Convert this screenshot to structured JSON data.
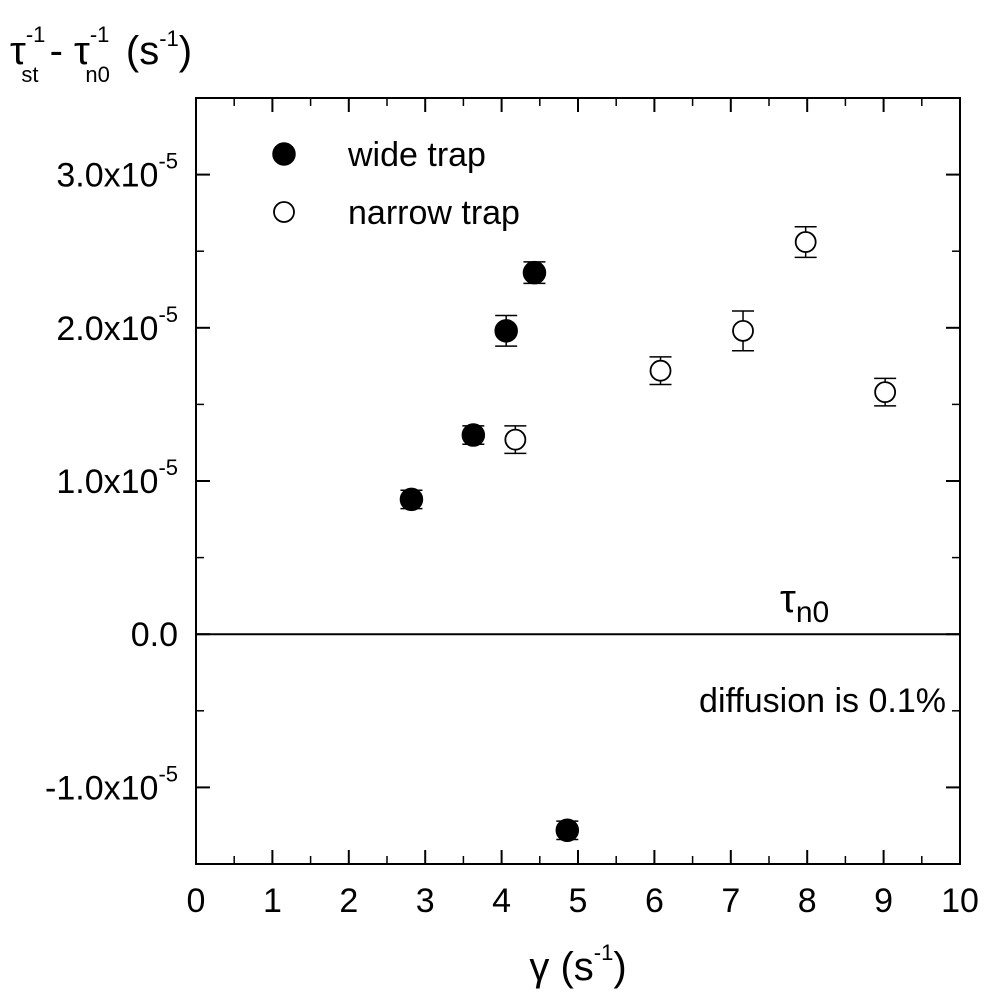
{
  "chart_data": {
    "type": "scatter",
    "ylabel": {
      "t1": "τ",
      "s1": "-1",
      "b1": "st",
      "mid": " - ",
      "t2": "τ",
      "s2": "-1",
      "b2": "n0",
      "unit_pre": "(s",
      "unit_sup": "-1",
      "unit_post": ")"
    },
    "xlabel": {
      "sym": "γ",
      "unit_pre": " (s",
      "unit_sup": "-1",
      "unit_post": ")"
    },
    "xlim": [
      0,
      10
    ],
    "ylim": [
      -1.5e-05,
      3.5e-05
    ],
    "x_ticks": [
      {
        "value": 0,
        "label": "0"
      },
      {
        "value": 1,
        "label": "1"
      },
      {
        "value": 2,
        "label": "2"
      },
      {
        "value": 3,
        "label": "3"
      },
      {
        "value": 4,
        "label": "4"
      },
      {
        "value": 5,
        "label": "5"
      },
      {
        "value": 6,
        "label": "6"
      },
      {
        "value": 7,
        "label": "7"
      },
      {
        "value": 8,
        "label": "8"
      },
      {
        "value": 9,
        "label": "9"
      },
      {
        "value": 10,
        "label": "10"
      }
    ],
    "y_ticks": [
      {
        "value": -1e-05,
        "mant": "-1.0x10",
        "exp": "-5"
      },
      {
        "value": 0,
        "mant": "0.0",
        "exp": ""
      },
      {
        "value": 1e-05,
        "mant": "1.0x10",
        "exp": "-5"
      },
      {
        "value": 2e-05,
        "mant": "2.0x10",
        "exp": "-5"
      },
      {
        "value": 3e-05,
        "mant": "3.0x10",
        "exp": "-5"
      }
    ],
    "zero_line": 0,
    "grid": false,
    "legend_position": "top-left",
    "series": [
      {
        "name": "wide trap",
        "marker": "filled-circle",
        "points": [
          {
            "x": 2.82,
            "y": 8.8e-06,
            "err": 6e-07
          },
          {
            "x": 3.63,
            "y": 1.3e-05,
            "err": 6e-07
          },
          {
            "x": 4.06,
            "y": 1.98e-05,
            "err": 1e-06
          },
          {
            "x": 4.43,
            "y": 2.36e-05,
            "err": 7e-07
          },
          {
            "x": 4.86,
            "y": -1.28e-05,
            "err": 6e-07
          }
        ]
      },
      {
        "name": "narrow trap",
        "marker": "open-circle",
        "points": [
          {
            "x": 4.18,
            "y": 1.27e-05,
            "err": 9e-07
          },
          {
            "x": 6.08,
            "y": 1.72e-05,
            "err": 9e-07
          },
          {
            "x": 7.16,
            "y": 1.98e-05,
            "err": 1.3e-06
          },
          {
            "x": 7.98,
            "y": 2.56e-05,
            "err": 1e-06
          },
          {
            "x": 9.02,
            "y": 1.58e-05,
            "err": 9e-07
          }
        ]
      }
    ],
    "annotations": {
      "tau_sym": "τ",
      "tau_sub": "n0",
      "diffusion_text": "diffusion is 0.1%"
    }
  }
}
